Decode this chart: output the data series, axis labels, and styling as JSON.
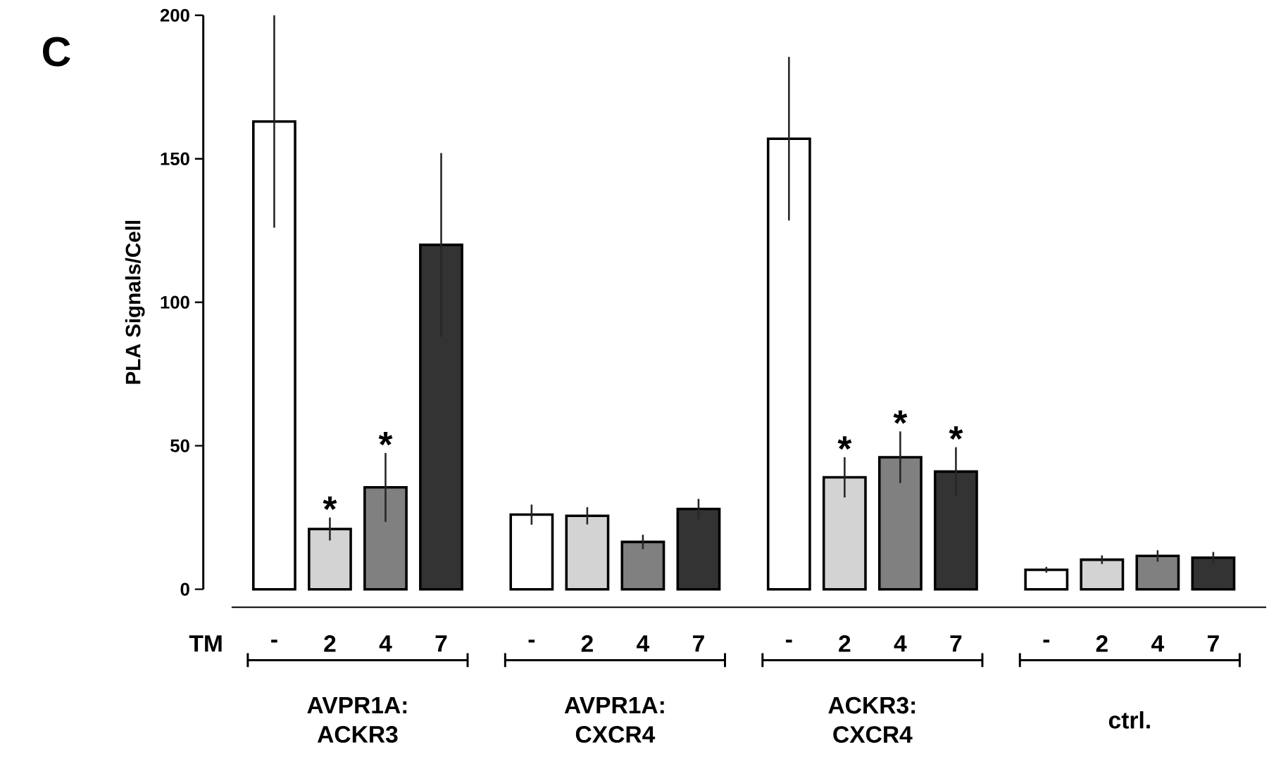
{
  "chart_data": {
    "type": "bar",
    "ylabel": "PLA Signals/Cell",
    "xlabel": "TM",
    "categories": [
      "AVPR1A: ACKR3",
      "AVPR1A: CXCR4",
      "ACKR3: CXCR4",
      "ctrl."
    ],
    "series": [
      {
        "name": "-",
        "color": "#ffffff",
        "values": [
          163,
          26,
          157,
          6.8
        ],
        "errors": [
          37,
          3.5,
          28.5,
          1
        ]
      },
      {
        "name": "2",
        "color": "#d3d3d3",
        "values": [
          21,
          25.6,
          39,
          10.3
        ],
        "errors": [
          4,
          3,
          7,
          1.5
        ],
        "value_labels": [
          "*",
          null,
          "*",
          null
        ]
      },
      {
        "name": "4",
        "color": "#808080",
        "values": [
          35.5,
          16.5,
          46,
          11.6
        ],
        "errors": [
          12,
          2.5,
          9,
          2
        ],
        "value_labels": [
          "*",
          null,
          "*",
          null
        ]
      },
      {
        "name": "7",
        "color": "#333333",
        "values": [
          120,
          28,
          41,
          11
        ],
        "errors": [
          32,
          3.5,
          8.5,
          2
        ],
        "value_labels": [
          null,
          null,
          "*",
          null
        ]
      }
    ],
    "ylim": [
      0,
      200
    ],
    "yticks": [
      0,
      50,
      100,
      150,
      200
    ],
    "annotations": [
      "C"
    ]
  }
}
